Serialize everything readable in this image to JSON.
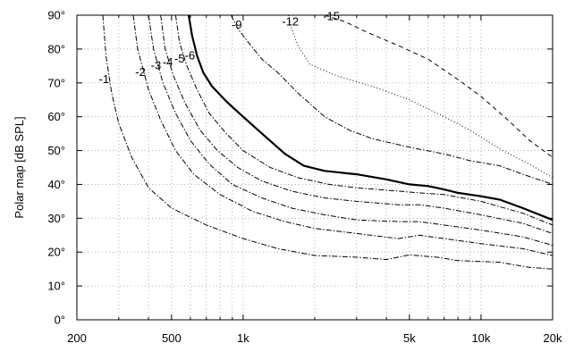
{
  "chart_data": {
    "type": "line",
    "title": "",
    "xlabel": "",
    "ylabel": "Polar map [dB SPL]",
    "x_scale": "log",
    "xlim": [
      200,
      20000
    ],
    "ylim": [
      0,
      90
    ],
    "grid": true,
    "legend": "none",
    "x_ticks": [
      {
        "value": 200,
        "label": "200"
      },
      {
        "value": 500,
        "label": "500"
      },
      {
        "value": 1000,
        "label": "1k"
      },
      {
        "value": 5000,
        "label": "5k"
      },
      {
        "value": 10000,
        "label": "10k"
      },
      {
        "value": 20000,
        "label": "20k"
      }
    ],
    "y_ticks": [
      {
        "value": 0,
        "label": "0°"
      },
      {
        "value": 10,
        "label": "10°"
      },
      {
        "value": 20,
        "label": "20°"
      },
      {
        "value": 30,
        "label": "30°"
      },
      {
        "value": 40,
        "label": "40°"
      },
      {
        "value": 50,
        "label": "50°"
      },
      {
        "value": 60,
        "label": "60°"
      },
      {
        "value": 70,
        "label": "70°"
      },
      {
        "value": 80,
        "label": "80°"
      },
      {
        "value": 90,
        "label": "90°"
      }
    ],
    "series": [
      {
        "label": "-1",
        "style": "dashdot",
        "label_pos": [
          260,
          70
        ],
        "points": [
          [
            257,
            90
          ],
          [
            265,
            78
          ],
          [
            280,
            67
          ],
          [
            300,
            58
          ],
          [
            340,
            48
          ],
          [
            400,
            39
          ],
          [
            500,
            33
          ],
          [
            700,
            28
          ],
          [
            1000,
            24
          ],
          [
            1400,
            21
          ],
          [
            2000,
            19
          ],
          [
            3000,
            18.5
          ],
          [
            4000,
            17.8
          ],
          [
            5000,
            19.2
          ],
          [
            6500,
            18.5
          ],
          [
            8000,
            17.5
          ],
          [
            12000,
            17
          ],
          [
            16000,
            15.5
          ],
          [
            20000,
            15
          ]
        ]
      },
      {
        "label": "-2",
        "style": "dashdot",
        "label_pos": [
          370,
          72
        ],
        "points": [
          [
            345,
            90
          ],
          [
            360,
            80
          ],
          [
            400,
            68
          ],
          [
            450,
            59
          ],
          [
            520,
            50
          ],
          [
            620,
            43
          ],
          [
            800,
            37
          ],
          [
            1100,
            32
          ],
          [
            1500,
            29
          ],
          [
            2000,
            27
          ],
          [
            3000,
            25.5
          ],
          [
            4500,
            24
          ],
          [
            5500,
            25
          ],
          [
            7000,
            24
          ],
          [
            10000,
            22.5
          ],
          [
            15000,
            21
          ],
          [
            20000,
            19
          ]
        ]
      },
      {
        "label": "-3",
        "style": "dashdot",
        "label_pos": [
          430,
          74
        ],
        "points": [
          [
            400,
            90
          ],
          [
            420,
            80
          ],
          [
            460,
            70
          ],
          [
            520,
            61
          ],
          [
            600,
            53
          ],
          [
            720,
            46
          ],
          [
            900,
            40
          ],
          [
            1200,
            36
          ],
          [
            1600,
            33
          ],
          [
            2200,
            31
          ],
          [
            3000,
            29.5
          ],
          [
            4500,
            29
          ],
          [
            5500,
            29
          ],
          [
            7000,
            28
          ],
          [
            10000,
            26.5
          ],
          [
            15000,
            24.5
          ],
          [
            20000,
            22
          ]
        ]
      },
      {
        "label": "-4",
        "style": "dashdot",
        "label_pos": [
          482,
          75
        ],
        "points": [
          [
            450,
            90
          ],
          [
            470,
            80
          ],
          [
            510,
            72
          ],
          [
            570,
            64
          ],
          [
            660,
            56
          ],
          [
            780,
            50
          ],
          [
            950,
            45
          ],
          [
            1200,
            41
          ],
          [
            1600,
            38
          ],
          [
            2200,
            36
          ],
          [
            3000,
            35
          ],
          [
            4500,
            34
          ],
          [
            5500,
            34
          ],
          [
            7000,
            33
          ],
          [
            10000,
            31
          ],
          [
            15000,
            28.5
          ],
          [
            20000,
            25.5
          ]
        ]
      },
      {
        "label": "-5",
        "style": "dashdot",
        "label_pos": [
          540,
          76
        ],
        "points": [
          [
            520,
            90
          ],
          [
            540,
            82
          ],
          [
            580,
            75
          ],
          [
            640,
            68
          ],
          [
            720,
            61
          ],
          [
            850,
            55
          ],
          [
            1000,
            50
          ],
          [
            1300,
            45
          ],
          [
            1700,
            42
          ],
          [
            2300,
            40
          ],
          [
            3000,
            39
          ],
          [
            4500,
            38
          ],
          [
            5500,
            37.5
          ],
          [
            7000,
            37
          ],
          [
            10000,
            35
          ],
          [
            15000,
            31.5
          ],
          [
            20000,
            28
          ]
        ]
      },
      {
        "label": "-6",
        "style": "solid",
        "label_pos": [
          597,
          77
        ],
        "points": [
          [
            590,
            90
          ],
          [
            610,
            84
          ],
          [
            640,
            78
          ],
          [
            680,
            73
          ],
          [
            740,
            69
          ],
          [
            850,
            64.5
          ],
          [
            1000,
            60
          ],
          [
            1200,
            55
          ],
          [
            1500,
            49
          ],
          [
            1800,
            45.5
          ],
          [
            2200,
            44
          ],
          [
            3000,
            43
          ],
          [
            4000,
            41.5
          ],
          [
            5000,
            40
          ],
          [
            6000,
            39.5
          ],
          [
            7000,
            38.5
          ],
          [
            8000,
            37.5
          ],
          [
            10000,
            36.5
          ],
          [
            12000,
            35.5
          ],
          [
            15000,
            33
          ],
          [
            20000,
            29.5
          ]
        ]
      },
      {
        "label": "-9",
        "style": "dashdot",
        "label_pos": [
          940,
          86
        ],
        "points": [
          [
            890,
            90
          ],
          [
            950,
            86
          ],
          [
            1050,
            82
          ],
          [
            1200,
            77
          ],
          [
            1400,
            73
          ],
          [
            1700,
            67
          ],
          [
            2200,
            60
          ],
          [
            2800,
            56
          ],
          [
            3500,
            53.5
          ],
          [
            5000,
            51
          ],
          [
            7000,
            49
          ],
          [
            9000,
            47
          ],
          [
            12000,
            45.5
          ],
          [
            15000,
            43
          ],
          [
            20000,
            40
          ]
        ]
      },
      {
        "label": "-12",
        "style": "dotted",
        "label_pos": [
          1580,
          87
        ],
        "points": [
          [
            1550,
            90
          ],
          [
            1600,
            86
          ],
          [
            1700,
            81
          ],
          [
            1900,
            75.5
          ],
          [
            2500,
            72
          ],
          [
            3500,
            69
          ],
          [
            5000,
            65
          ],
          [
            7000,
            60
          ],
          [
            9000,
            56
          ],
          [
            12000,
            50.5
          ],
          [
            16000,
            46
          ],
          [
            20000,
            42
          ]
        ]
      },
      {
        "label": "-15",
        "style": "dashed",
        "label_pos": [
          2350,
          88.5
        ],
        "points": [
          [
            2200,
            90
          ],
          [
            2700,
            88
          ],
          [
            3300,
            85
          ],
          [
            4500,
            81
          ],
          [
            6000,
            77
          ],
          [
            8000,
            71
          ],
          [
            10000,
            66
          ],
          [
            13000,
            59
          ],
          [
            16000,
            53
          ],
          [
            20000,
            48
          ]
        ]
      }
    ]
  }
}
